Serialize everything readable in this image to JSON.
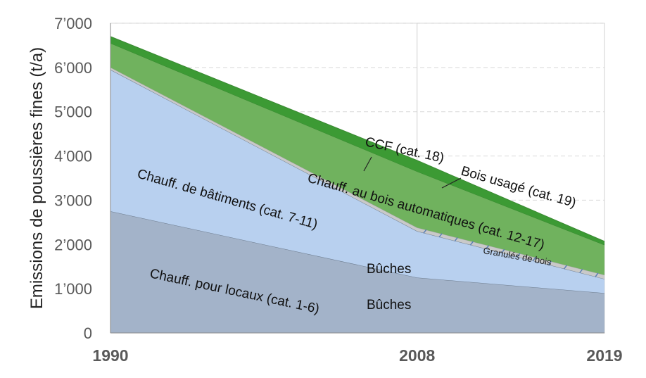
{
  "chart_data": {
    "type": "area",
    "stacked": true,
    "x": [
      1990,
      2008,
      2019
    ],
    "ylabel": "Emissions de poussières fines (t/a)",
    "ylim": [
      0,
      7000
    ],
    "yticks": [
      "0",
      "1’000",
      "2’000",
      "3’000",
      "4’000",
      "5’000",
      "6’000",
      "7’000"
    ],
    "xticks": [
      "1990",
      "2008",
      "2019"
    ],
    "grid": "horizontal dashed",
    "series": [
      {
        "name": "Chauff. pour locaux (cat. 1-6)",
        "color": "#a3b3c9",
        "values": [
          2750,
          1250,
          900
        ]
      },
      {
        "name": "Chauff. de bâtiments (cat. 7-11)",
        "color": "#b8d0ef",
        "values": [
          3200,
          1050,
          320
        ]
      },
      {
        "name": "Granulés de bois",
        "color": "#c9c9c9",
        "values": [
          50,
          80,
          90
        ]
      },
      {
        "name": "Chauff. au bois automatiques (cat. 12-17)",
        "color": "#70b25e",
        "values": [
          550,
          1270,
          680
        ]
      },
      {
        "name": "CCF (cat. 18) / Bois usagé (cat. 19)",
        "color": "#3c9a34",
        "values": [
          150,
          250,
          80
        ]
      }
    ],
    "annotations": {
      "locaux": "Chauff. pour locaux (cat. 1-6)",
      "batiments": "Chauff. de bâtiments (cat. 7-11)",
      "automatiques": "Chauff. au bois automatiques (cat. 12-17)",
      "ccf": "CCF (cat. 18)",
      "bois_usage": "Bois usagé (cat. 19)",
      "buches_1": "Bûches",
      "buches_2": "Bûches",
      "granules": "Granulés de bois"
    }
  }
}
